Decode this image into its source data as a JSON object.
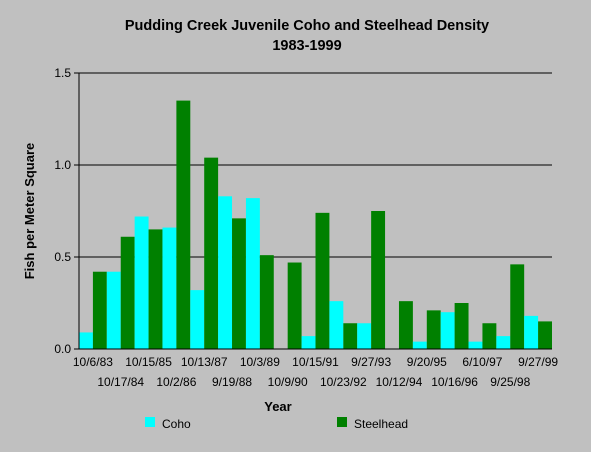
{
  "chart_data": {
    "type": "bar",
    "title": "Pudding Creek Juvenile Coho and Steelhead  Density",
    "subtitle": "1983-1999",
    "xlabel": "Year",
    "ylabel": "Fish per Meter Square",
    "ylim": [
      0,
      1.5
    ],
    "yticks": [
      "0.0",
      "0.5",
      "1.0",
      "1.5"
    ],
    "grid": true,
    "legend_position": "bottom",
    "categories": [
      "10/6/83",
      "10/17/84",
      "10/15/85",
      "10/2/86",
      "10/13/87",
      "9/19/88",
      "10/3/89",
      "10/9/90",
      "10/15/91",
      "10/23/92",
      "9/27/93",
      "10/12/94",
      "9/20/95",
      "10/16/96",
      "6/10/97",
      "9/25/98",
      "9/27/99"
    ],
    "series": [
      {
        "name": "Coho",
        "color": "#00ffff",
        "values": [
          0.09,
          0.42,
          0.72,
          0.66,
          0.32,
          0.83,
          0.82,
          0.0,
          0.07,
          0.26,
          0.14,
          0.0,
          0.04,
          0.2,
          0.04,
          0.07,
          0.18
        ]
      },
      {
        "name": "Steelhead",
        "color": "#008000",
        "values": [
          0.42,
          0.61,
          0.65,
          1.35,
          1.04,
          0.71,
          0.51,
          0.47,
          0.74,
          0.14,
          0.75,
          0.26,
          0.21,
          0.25,
          0.14,
          0.46,
          0.15
        ]
      }
    ]
  }
}
